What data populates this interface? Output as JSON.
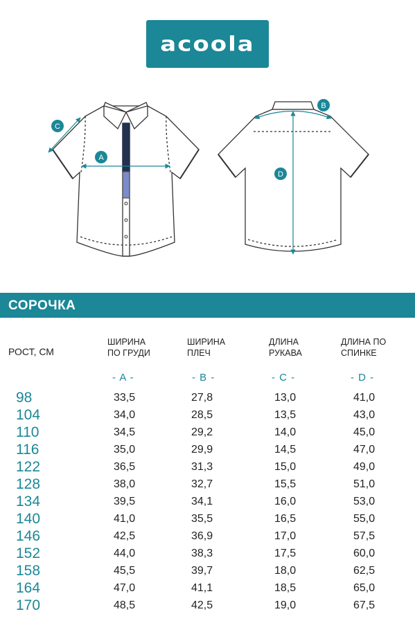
{
  "brand": "acoola",
  "labels": {
    "a": "A",
    "b": "B",
    "c": "C",
    "d": "D"
  },
  "title": "СОРОЧКА",
  "columns": {
    "height": "РОСТ, СМ",
    "chest": "ШИРИНА ПО ГРУДИ",
    "shoulders": "ШИРИНА ПЛЕЧ",
    "sleeve": "ДЛИНА РУКАВА",
    "back": "ДЛИНА ПО СПИНКЕ"
  },
  "letters": [
    "- A -",
    "- B -",
    "- C -",
    "- D -"
  ],
  "rows": [
    {
      "h": "98",
      "a": "33,5",
      "b": "27,8",
      "c": "13,0",
      "d": "41,0"
    },
    {
      "h": "104",
      "a": "34,0",
      "b": "28,5",
      "c": "13,5",
      "d": "43,0"
    },
    {
      "h": "110",
      "a": "34,5",
      "b": "29,2",
      "c": "14,0",
      "d": "45,0"
    },
    {
      "h": "116",
      "a": "35,0",
      "b": "29,9",
      "c": "14,5",
      "d": "47,0"
    },
    {
      "h": "122",
      "a": "36,5",
      "b": "31,3",
      "c": "15,0",
      "d": "49,0"
    },
    {
      "h": "128",
      "a": "38,0",
      "b": "32,7",
      "c": "15,5",
      "d": "51,0"
    },
    {
      "h": "134",
      "a": "39,5",
      "b": "34,1",
      "c": "16,0",
      "d": "53,0"
    },
    {
      "h": "140",
      "a": "41,0",
      "b": "35,5",
      "c": "16,5",
      "d": "55,0"
    },
    {
      "h": "146",
      "a": "42,5",
      "b": "36,9",
      "c": "17,0",
      "d": "57,5"
    },
    {
      "h": "152",
      "a": "44,0",
      "b": "38,3",
      "c": "17,5",
      "d": "60,0"
    },
    {
      "h": "158",
      "a": "45,5",
      "b": "39,7",
      "c": "18,0",
      "d": "62,5"
    },
    {
      "h": "164",
      "a": "47,0",
      "b": "41,1",
      "c": "18,5",
      "d": "65,0"
    },
    {
      "h": "170",
      "a": "48,5",
      "b": "42,5",
      "c": "19,0",
      "d": "67,5"
    }
  ],
  "colors": {
    "accent": "#1b8797",
    "placket": "#7b8cc9",
    "line": "#333333"
  }
}
